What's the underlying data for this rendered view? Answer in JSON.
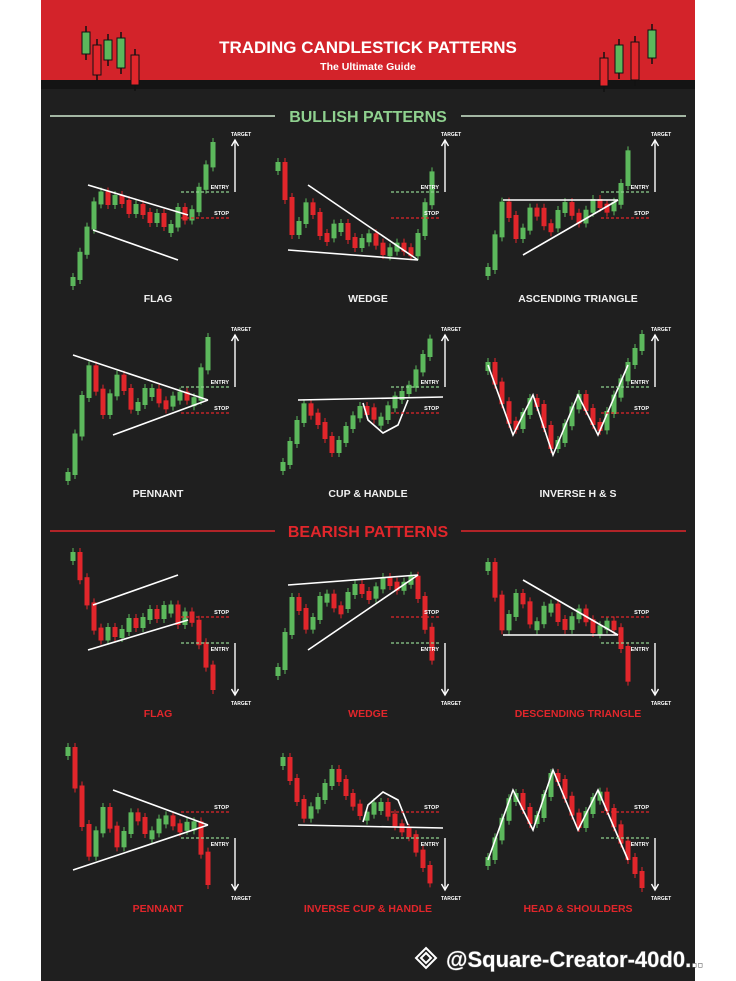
{
  "header": {
    "title": "TRADING CANDLESTICK PATTERNS",
    "subtitle": "The Ultimate Guide"
  },
  "sections": [
    {
      "title": "BULLISH PATTERNS",
      "patterns": [
        {
          "name": "FLAG",
          "target": "TARGET",
          "entry": "ENTRY",
          "stop": "STOP"
        },
        {
          "name": "WEDGE",
          "target": "TARGET",
          "entry": "ENTRY",
          "stop": "STOP"
        },
        {
          "name": "ASCENDING TRIANGLE",
          "target": "TARGET",
          "entry": "ENTRY",
          "stop": "STOP"
        },
        {
          "name": "PENNANT",
          "target": "TARGET",
          "entry": "ENTRY",
          "stop": "STOP"
        },
        {
          "name": "CUP & HANDLE",
          "target": "TARGET",
          "entry": "ENTRY",
          "stop": "STOP"
        },
        {
          "name": "INVERSE H & S",
          "target": "TARGET",
          "entry": "ENTRY",
          "stop": "STOP"
        }
      ]
    },
    {
      "title": "BEARISH PATTERNS",
      "patterns": [
        {
          "name": "FLAG",
          "target": "TARGET",
          "entry": "ENTRY",
          "stop": "STOP"
        },
        {
          "name": "WEDGE",
          "target": "TARGET",
          "entry": "ENTRY",
          "stop": "STOP"
        },
        {
          "name": "DESCENDING TRIANGLE",
          "target": "TARGET",
          "entry": "ENTRY",
          "stop": "STOP"
        },
        {
          "name": "PENNANT",
          "target": "TARGET",
          "entry": "ENTRY",
          "stop": "STOP"
        },
        {
          "name": "INVERSE CUP & HANDLE",
          "target": "TARGET",
          "entry": "ENTRY",
          "stop": "STOP"
        },
        {
          "name": "HEAD & SHOULDERS",
          "target": "TARGET",
          "entry": "ENTRY",
          "stop": "STOP"
        }
      ]
    }
  ],
  "watermark": "@Square-Creator-40d0..."
}
